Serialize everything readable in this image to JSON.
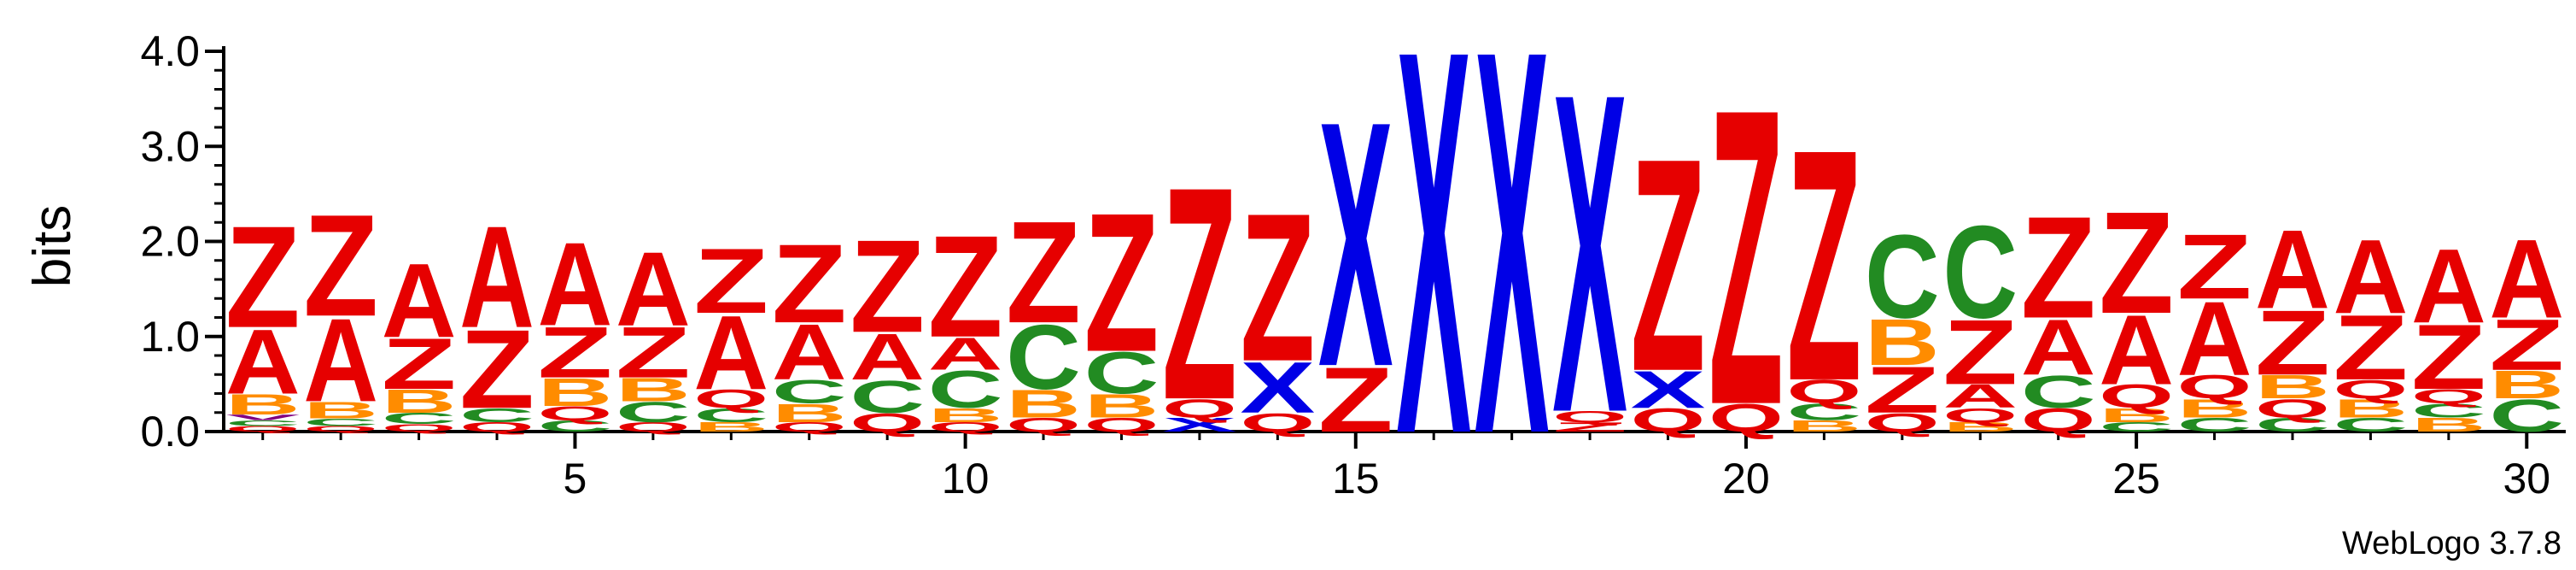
{
  "chart_data": {
    "type": "sequence-logo",
    "ylabel": "bits",
    "ylim": [
      0,
      4.0
    ],
    "y_ticks": [
      "0.0",
      "1.0",
      "2.0",
      "3.0",
      "4.0"
    ],
    "x_tick_positions": [
      5,
      10,
      15,
      20,
      25,
      30
    ],
    "x_tick_labels": [
      "5",
      "10",
      "15",
      "20",
      "25",
      "30"
    ],
    "credit": "WebLogo 3.7.8",
    "colors": {
      "A": "#e60000",
      "Z": "#e60000",
      "Q": "#e60000",
      "X": "#0000e6",
      "C": "#228b22",
      "B": "#ff8c00",
      "V": "#800080"
    },
    "positions": [
      {
        "pos": 1,
        "stack": [
          [
            "Q",
            0.06
          ],
          [
            "C",
            0.06
          ],
          [
            "V",
            0.06
          ],
          [
            "B",
            0.22
          ],
          [
            "A",
            0.7
          ],
          [
            "Z",
            1.1
          ]
        ]
      },
      {
        "pos": 2,
        "stack": [
          [
            "Q",
            0.06
          ],
          [
            "C",
            0.08
          ],
          [
            "B",
            0.18
          ],
          [
            "A",
            0.9
          ],
          [
            "Z",
            1.1
          ]
        ]
      },
      {
        "pos": 3,
        "stack": [
          [
            "Q",
            0.08
          ],
          [
            "C",
            0.12
          ],
          [
            "B",
            0.25
          ],
          [
            "Z",
            0.55
          ],
          [
            "A",
            0.8
          ]
        ]
      },
      {
        "pos": 4,
        "stack": [
          [
            "Q",
            0.1
          ],
          [
            "C",
            0.15
          ],
          [
            "Z",
            0.85
          ],
          [
            "A",
            1.1
          ]
        ]
      },
      {
        "pos": 5,
        "stack": [
          [
            "C",
            0.12
          ],
          [
            "Q",
            0.15
          ],
          [
            "B",
            0.3
          ],
          [
            "Z",
            0.55
          ],
          [
            "A",
            0.9
          ]
        ]
      },
      {
        "pos": 6,
        "stack": [
          [
            "Q",
            0.1
          ],
          [
            "C",
            0.22
          ],
          [
            "B",
            0.25
          ],
          [
            "Z",
            0.55
          ],
          [
            "A",
            0.8
          ]
        ]
      },
      {
        "pos": 7,
        "stack": [
          [
            "B",
            0.1
          ],
          [
            "C",
            0.15
          ],
          [
            "Q",
            0.2
          ],
          [
            "A",
            0.8
          ],
          [
            "Z",
            0.7
          ]
        ]
      },
      {
        "pos": 8,
        "stack": [
          [
            "Q",
            0.1
          ],
          [
            "B",
            0.2
          ],
          [
            "C",
            0.25
          ],
          [
            "A",
            0.6
          ],
          [
            "Z",
            0.85
          ]
        ]
      },
      {
        "pos": 9,
        "stack": [
          [
            "Q",
            0.2
          ],
          [
            "C",
            0.35
          ],
          [
            "A",
            0.5
          ],
          [
            "Z",
            1.0
          ]
        ]
      },
      {
        "pos": 10,
        "stack": [
          [
            "Q",
            0.1
          ],
          [
            "B",
            0.15
          ],
          [
            "C",
            0.4
          ],
          [
            "A",
            0.35
          ],
          [
            "Z",
            1.1
          ]
        ]
      },
      {
        "pos": 11,
        "stack": [
          [
            "Q",
            0.15
          ],
          [
            "B",
            0.3
          ],
          [
            "C",
            0.7
          ],
          [
            "Z",
            1.1
          ]
        ]
      },
      {
        "pos": 12,
        "stack": [
          [
            "Q",
            0.15
          ],
          [
            "B",
            0.25
          ],
          [
            "C",
            0.45
          ],
          [
            "Z",
            1.5
          ]
        ]
      },
      {
        "pos": 13,
        "stack": [
          [
            "X",
            0.15
          ],
          [
            "Q",
            0.2
          ],
          [
            "Z",
            2.3
          ]
        ]
      },
      {
        "pos": 14,
        "stack": [
          [
            "Q",
            0.2
          ],
          [
            "X",
            0.55
          ],
          [
            "Z",
            1.6
          ]
        ]
      },
      {
        "pos": 15,
        "stack": [
          [
            "Z",
            0.7
          ],
          [
            "X",
            2.65
          ]
        ]
      },
      {
        "pos": 16,
        "stack": [
          [
            "X",
            4.15
          ]
        ]
      },
      {
        "pos": 17,
        "stack": [
          [
            "X",
            4.15
          ]
        ]
      },
      {
        "pos": 18,
        "stack": [
          [
            "Z",
            0.1
          ],
          [
            "Q",
            0.12
          ],
          [
            "X",
            3.45
          ]
        ]
      },
      {
        "pos": 19,
        "stack": [
          [
            "Q",
            0.25
          ],
          [
            "X",
            0.4
          ],
          [
            "Z",
            2.3
          ]
        ]
      },
      {
        "pos": 20,
        "stack": [
          [
            "Q",
            0.3
          ],
          [
            "Z",
            3.2
          ]
        ]
      },
      {
        "pos": 21,
        "stack": [
          [
            "B",
            0.12
          ],
          [
            "C",
            0.18
          ],
          [
            "Q",
            0.25
          ],
          [
            "Z",
            2.5
          ]
        ]
      },
      {
        "pos": 22,
        "stack": [
          [
            "Q",
            0.2
          ],
          [
            "Z",
            0.5
          ],
          [
            "B",
            0.5
          ],
          [
            "C",
            0.9
          ]
        ]
      },
      {
        "pos": 23,
        "stack": [
          [
            "B",
            0.1
          ],
          [
            "Q",
            0.15
          ],
          [
            "A",
            0.25
          ],
          [
            "Z",
            0.7
          ],
          [
            "C",
            1.0
          ]
        ]
      },
      {
        "pos": 24,
        "stack": [
          [
            "Q",
            0.25
          ],
          [
            "C",
            0.35
          ],
          [
            "A",
            0.6
          ],
          [
            "Z",
            1.1
          ]
        ]
      },
      {
        "pos": 25,
        "stack": [
          [
            "C",
            0.1
          ],
          [
            "B",
            0.15
          ],
          [
            "Q",
            0.25
          ],
          [
            "A",
            0.75
          ],
          [
            "Z",
            1.1
          ]
        ]
      },
      {
        "pos": 26,
        "stack": [
          [
            "C",
            0.15
          ],
          [
            "B",
            0.2
          ],
          [
            "Q",
            0.25
          ],
          [
            "A",
            0.8
          ],
          [
            "Z",
            0.7
          ]
        ]
      },
      {
        "pos": 27,
        "stack": [
          [
            "C",
            0.15
          ],
          [
            "Q",
            0.2
          ],
          [
            "B",
            0.25
          ],
          [
            "Z",
            0.7
          ],
          [
            "A",
            0.85
          ]
        ]
      },
      {
        "pos": 28,
        "stack": [
          [
            "C",
            0.15
          ],
          [
            "B",
            0.2
          ],
          [
            "Q",
            0.2
          ],
          [
            "Z",
            0.7
          ],
          [
            "A",
            0.8
          ]
        ]
      },
      {
        "pos": 29,
        "stack": [
          [
            "B",
            0.15
          ],
          [
            "C",
            0.15
          ],
          [
            "Q",
            0.15
          ],
          [
            "Z",
            0.7
          ],
          [
            "A",
            0.8
          ]
        ]
      },
      {
        "pos": 30,
        "stack": [
          [
            "C",
            0.35
          ],
          [
            "B",
            0.3
          ],
          [
            "Z",
            0.55
          ],
          [
            "A",
            0.85
          ]
        ]
      }
    ]
  }
}
